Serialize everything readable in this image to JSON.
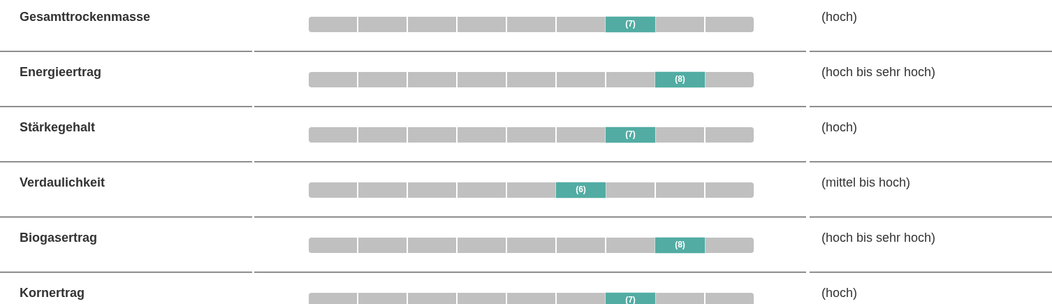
{
  "chart_data": {
    "type": "other",
    "categories": [
      "Gesamttrockenmasse",
      "Energieertrag",
      "Stärkegehalt",
      "Verdaulichkeit",
      "Biogasertrag",
      "Kornertrag"
    ],
    "values": [
      7,
      8,
      7,
      6,
      8,
      7
    ],
    "value_labels": [
      "(7)",
      "(8)",
      "(7)",
      "(6)",
      "(8)",
      "(7)"
    ],
    "y2_categories": [
      "(hoch)",
      "(hoch bis sehr hoch)",
      "(hoch)",
      "(mittel bis hoch)",
      "(hoch bis sehr hoch)",
      "(hoch)"
    ],
    "color": "#52aca3"
  }
}
